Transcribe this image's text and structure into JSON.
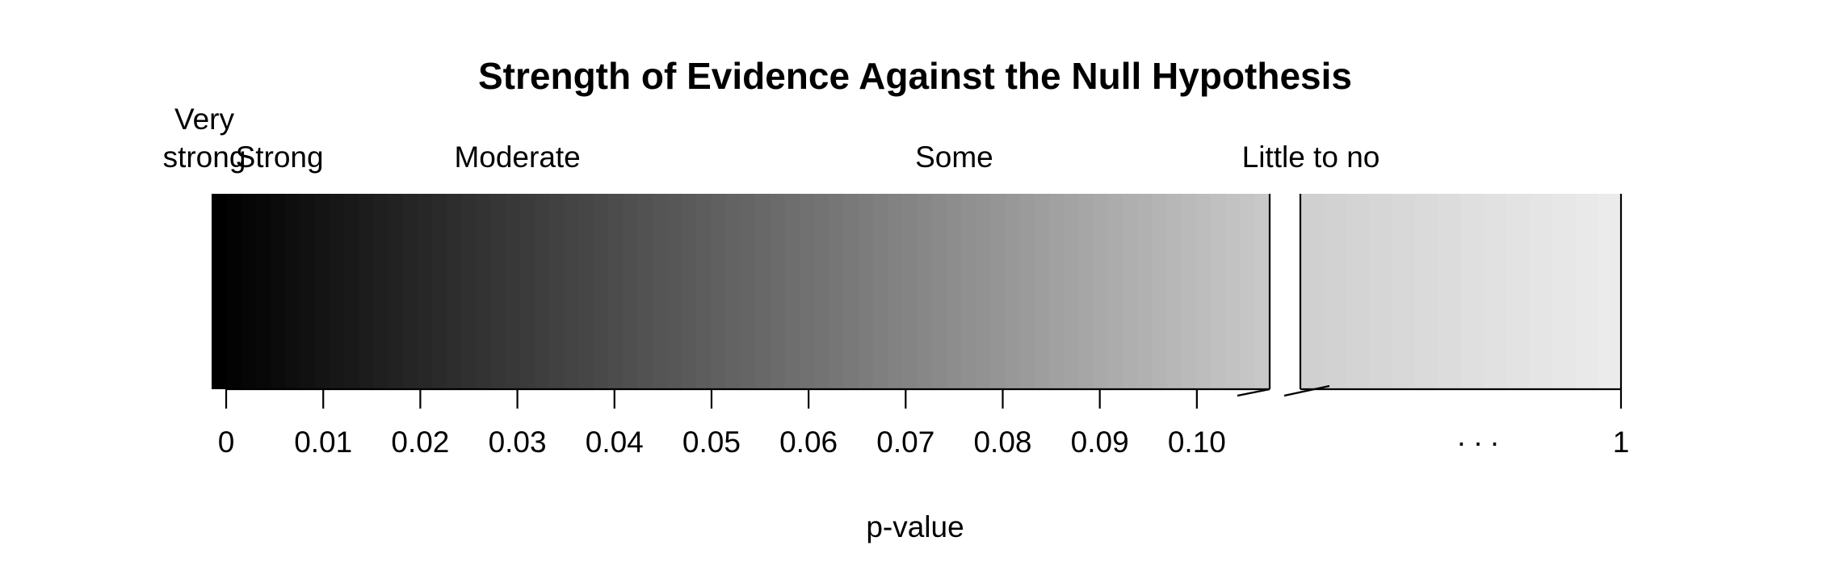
{
  "chart_data": {
    "type": "heatmap",
    "title": "Strength of Evidence Against the Null Hypothesis",
    "xlabel": "p-value",
    "ellipsis": ". . .",
    "categories": [
      {
        "lines": [
          "Very",
          "strong"
        ],
        "from": 0.0,
        "to": 0.001
      },
      {
        "lines": [
          "Strong"
        ],
        "from": 0.001,
        "to": 0.01
      },
      {
        "lines": [
          "Moderate"
        ],
        "from": 0.01,
        "to": 0.05
      },
      {
        "lines": [
          "Some"
        ],
        "from": 0.05,
        "to": 0.1
      },
      {
        "lines": [
          "Little to no"
        ],
        "from": 0.1,
        "to": 1.0
      }
    ],
    "segments": [
      {
        "xlim": [
          -0.0015,
          0.1075
        ],
        "ticks": [
          0,
          0.01,
          0.02,
          0.03,
          0.04,
          0.05,
          0.06,
          0.07,
          0.08,
          0.09,
          0.1
        ],
        "tick_labels": [
          "0",
          "0.01",
          "0.02",
          "0.03",
          "0.04",
          "0.05",
          "0.06",
          "0.07",
          "0.08",
          "0.09",
          "0.10"
        ],
        "gradient": [
          "#000000",
          "#c8c8c8"
        ]
      },
      {
        "xlim": [
          0.1075,
          1.0
        ],
        "ticks": [
          1
        ],
        "tick_labels": [
          "1"
        ],
        "gradient": [
          "#d0d0d0",
          "#ebebeb"
        ]
      }
    ],
    "axis_break": true,
    "colors": {
      "darkest": "#000000",
      "lightest": "#ebebeb"
    }
  }
}
